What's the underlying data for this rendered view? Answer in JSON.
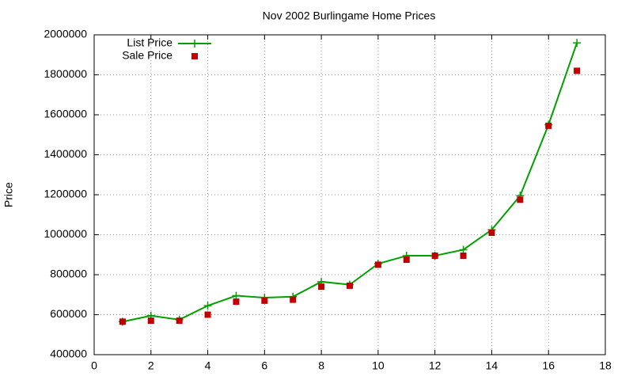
{
  "chart_data": {
    "type": "line",
    "title": "Nov 2002 Burlingame Home Prices",
    "y_label": "Price",
    "x": [
      1,
      2,
      3,
      4,
      5,
      6,
      7,
      8,
      9,
      10,
      11,
      12,
      13,
      14,
      15,
      16,
      17
    ],
    "series": [
      {
        "name": "List Price",
        "color": "#00a000",
        "style": "linespoints",
        "values": [
          565000,
          595000,
          575000,
          645000,
          695000,
          685000,
          690000,
          765000,
          750000,
          855000,
          895000,
          895000,
          925000,
          1025000,
          1195000,
          1550000,
          1960000
        ]
      },
      {
        "name": "Sale Price",
        "color": "#c00000",
        "style": "points",
        "values": [
          565000,
          570000,
          570000,
          600000,
          665000,
          670000,
          675000,
          740000,
          745000,
          850000,
          875000,
          895000,
          895000,
          1010000,
          1175000,
          1545000,
          1820000
        ]
      }
    ],
    "xlim": [
      0,
      18
    ],
    "xticks": [
      0,
      2,
      4,
      6,
      8,
      10,
      12,
      14,
      16,
      18
    ],
    "ylim": [
      400000,
      2000000
    ],
    "yticks": [
      400000,
      600000,
      800000,
      1000000,
      1200000,
      1400000,
      1600000,
      1800000,
      2000000
    ],
    "grid": true,
    "legend": "top-left"
  }
}
